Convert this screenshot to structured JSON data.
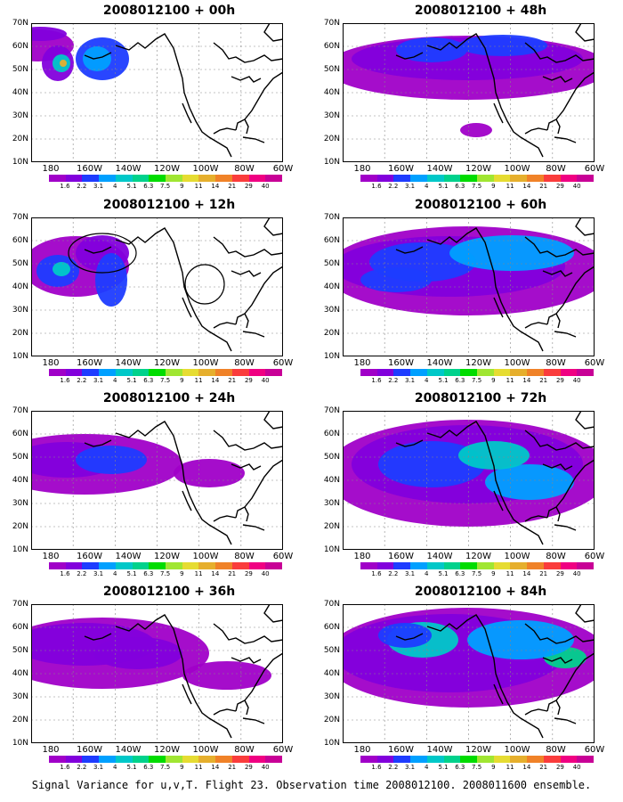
{
  "panels": [
    {
      "title": "2008012100 + 00h"
    },
    {
      "title": "2008012100 + 48h"
    },
    {
      "title": "2008012100 + 12h"
    },
    {
      "title": "2008012100 + 60h"
    },
    {
      "title": "2008012100 + 24h"
    },
    {
      "title": "2008012100 + 72h"
    },
    {
      "title": "2008012100 + 36h"
    },
    {
      "title": "2008012100 + 84h"
    }
  ],
  "lat_labels": [
    "70N",
    "60N",
    "50N",
    "40N",
    "30N",
    "20N",
    "10N"
  ],
  "lon_labels": [
    "180",
    "160W",
    "140W",
    "120W",
    "100W",
    "80W",
    "60W"
  ],
  "colorbar": {
    "labels": [
      "1.6",
      "2.2",
      "3.1",
      "4",
      "5.1",
      "6.3",
      "7.5",
      "9",
      "11",
      "14",
      "21",
      "29",
      "40"
    ],
    "colors": [
      "#a000c8",
      "#8200dc",
      "#1e3cff",
      "#00a0ff",
      "#00c8c8",
      "#00d28c",
      "#00dc00",
      "#a0e632",
      "#e6dc32",
      "#e6af2d",
      "#f08228",
      "#fa3c3c",
      "#f00082",
      "#c80096"
    ]
  },
  "footer": "Signal Variance for u,v,T. Flight 23. Observation time 2008012100. 2008011600 ensemble."
}
